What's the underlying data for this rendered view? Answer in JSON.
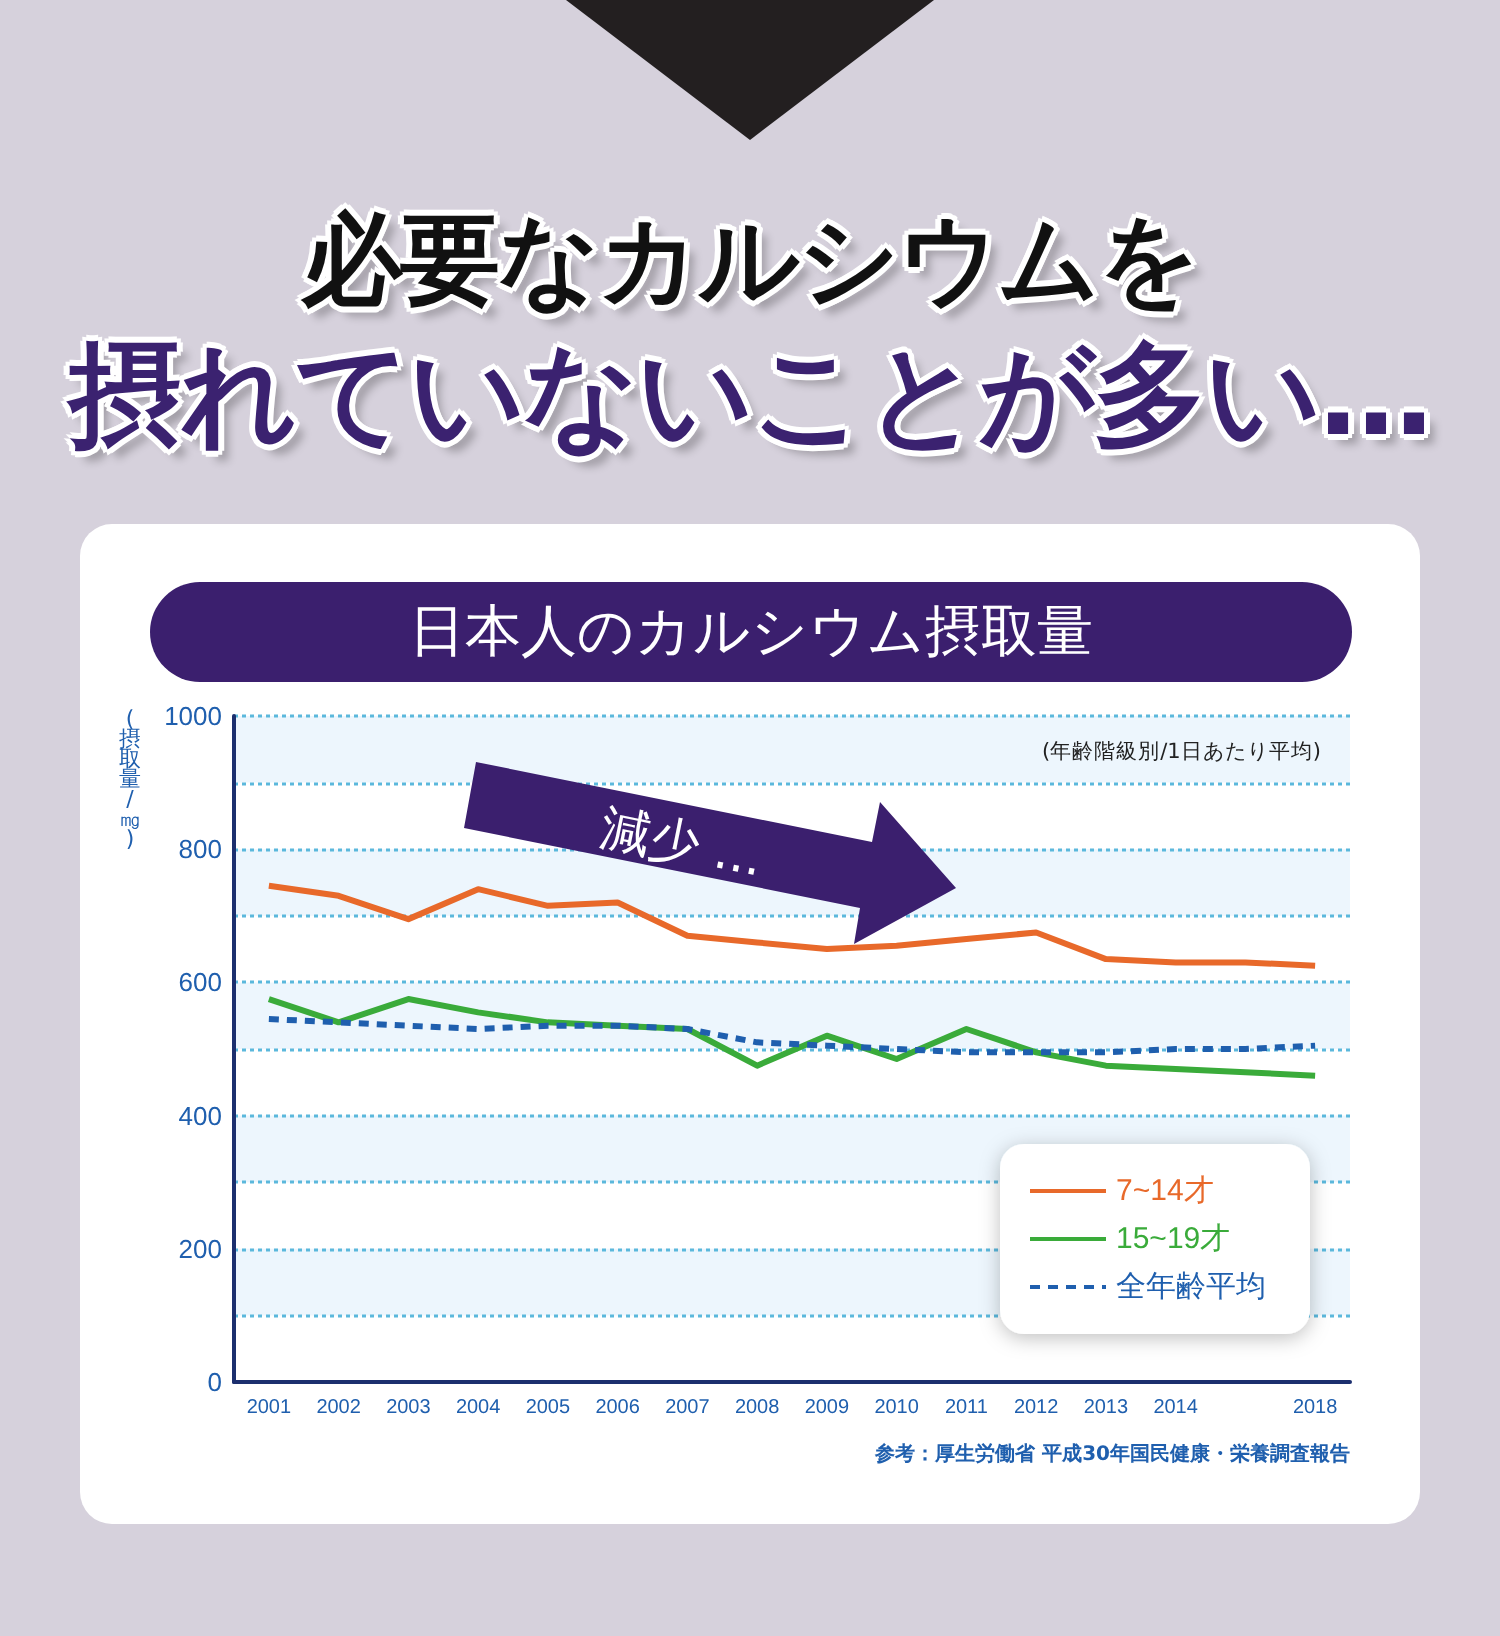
{
  "chart_data": {
    "type": "line",
    "title": "必要なカルシウムを摂れていないことが多い…",
    "subtitle": "日本人のカルシウム摂取量",
    "ylabel": "(摂取量/㎎)",
    "categories": [
      "2001",
      "2002",
      "2003",
      "2004",
      "2005",
      "2006",
      "2007",
      "2008",
      "2009",
      "2010",
      "2011",
      "2012",
      "2013",
      "2014",
      null,
      "2018"
    ],
    "series": [
      {
        "name": "7~14才",
        "color": "#e8692a",
        "values": [
          745,
          730,
          695,
          740,
          715,
          720,
          670,
          660,
          650,
          655,
          665,
          675,
          635,
          630,
          630,
          625
        ]
      },
      {
        "name": "15~19才",
        "color": "#3aab3a",
        "values": [
          575,
          540,
          575,
          555,
          540,
          535,
          530,
          475,
          520,
          485,
          530,
          495,
          475,
          470,
          465,
          460
        ]
      },
      {
        "name": "全年齢平均",
        "color": "#1f5fae",
        "line_style": "dashed",
        "values": [
          545,
          540,
          535,
          530,
          535,
          535,
          530,
          510,
          505,
          500,
          495,
          495,
          495,
          500,
          500,
          505
        ]
      }
    ],
    "ylim": [
      0,
      1000
    ],
    "yticks": [
      0,
      {
        "value": 100,
        "label": null
      },
      200,
      {
        "value": 300,
        "label": null
      },
      400,
      {
        "value": 500,
        "label": null
      },
      600,
      {
        "value": 700,
        "label": null
      },
      800,
      {
        "value": 900,
        "label": null
      },
      1000
    ],
    "grid": "y",
    "legend": "bottom right",
    "marker": "none",
    "line_style": "solid",
    "annotations": [
      "(年齢階級別/1日あたり平均)",
      "減少 ...",
      "参考：厚生労働省 平成30年国民健康・栄養調査報告"
    ]
  }
}
